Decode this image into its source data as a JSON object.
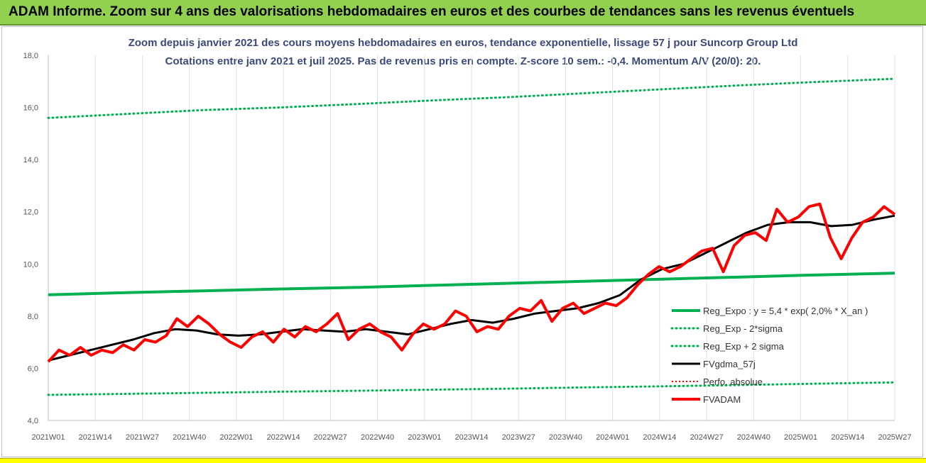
{
  "banner": {
    "title": "ADAM Informe. Zoom sur 4 ans des valorisations hebdomadaires en euros et des courbes de tendances sans les revenus éventuels"
  },
  "colors": {
    "banner_bg": "#92d050",
    "bottom_strip": "#ffff00",
    "title_text": "#3b4a7a",
    "reg_expo": "#00b050",
    "fvgdma": "#000000",
    "perfo": "#ff0000",
    "fvadam": "#ff0000"
  },
  "chart_data": {
    "type": "line",
    "title": "Zoom depuis janvier 2021 des cours moyens hebdomadaires en euros, tendance exponentielle, lissage 57 j pour Suncorp Group Ltd",
    "subtitle": "Cotations entre janv 2021 et juil 2025. Pas de revenus pris en compte. Z-score 10 sem.: -0,4. Momentum A/V (20/0): 20.",
    "xlabel": "",
    "ylabel": "",
    "ylim": [
      4.0,
      18.0
    ],
    "y_ticks": [
      "4,0",
      "6,0",
      "8,0",
      "10,0",
      "12,0",
      "14,0",
      "16,0",
      "18,0"
    ],
    "x_ticks": [
      "2021W01",
      "2021W14",
      "2021W27",
      "2021W40",
      "2022W01",
      "2022W14",
      "2022W27",
      "2022W40",
      "2023W01",
      "2023W14",
      "2023W27",
      "2023W40",
      "2024W01",
      "2024W14",
      "2024W27",
      "2024W40",
      "2025W01",
      "2025W14",
      "2025W27"
    ],
    "grid": "vertical",
    "legend_position": "right",
    "series": [
      {
        "name": "Reg_Expo : y = 5,4 * exp( 2,0% *  X_an )",
        "color": "#00b050",
        "style": "solid",
        "values": [
          8.82,
          8.9,
          8.97,
          9.04,
          9.1,
          9.18,
          9.26,
          9.34,
          9.42,
          9.5,
          9.58,
          9.65
        ]
      },
      {
        "name": "Reg_Exp - 2*sigma",
        "color": "#00b050",
        "style": "dotted",
        "values": [
          4.98,
          5.02,
          5.06,
          5.1,
          5.14,
          5.18,
          5.22,
          5.27,
          5.31,
          5.36,
          5.41,
          5.46
        ]
      },
      {
        "name": "Reg_Exp + 2 sigma",
        "color": "#00b050",
        "style": "dotted",
        "values": [
          15.6,
          15.75,
          15.9,
          16.0,
          16.13,
          16.27,
          16.4,
          16.55,
          16.7,
          16.85,
          16.98,
          17.1
        ]
      },
      {
        "name": "FVgdma_57j",
        "color": "#000000",
        "style": "solid",
        "values": [
          6.3,
          6.5,
          6.7,
          6.9,
          7.1,
          7.35,
          7.5,
          7.45,
          7.3,
          7.25,
          7.3,
          7.4,
          7.5,
          7.45,
          7.4,
          7.5,
          7.4,
          7.3,
          7.5,
          7.7,
          7.85,
          7.75,
          7.9,
          8.1,
          8.2,
          8.3,
          8.5,
          8.8,
          9.4,
          9.8,
          10.0,
          10.4,
          10.8,
          11.2,
          11.5,
          11.6,
          11.6,
          11.45,
          11.5,
          11.7,
          11.85
        ]
      },
      {
        "name": "Perfo. absolue",
        "color": "#ff0000",
        "style": "dotted",
        "values": []
      },
      {
        "name": "FVADAM",
        "color": "#ff0000",
        "style": "solid",
        "values": [
          6.25,
          6.7,
          6.5,
          6.8,
          6.5,
          6.7,
          6.6,
          6.9,
          6.7,
          7.1,
          7.0,
          7.25,
          7.9,
          7.6,
          8.0,
          7.7,
          7.3,
          7.0,
          6.8,
          7.2,
          7.4,
          7.0,
          7.5,
          7.2,
          7.6,
          7.4,
          7.7,
          8.1,
          7.1,
          7.5,
          7.7,
          7.4,
          7.2,
          6.7,
          7.3,
          7.7,
          7.5,
          7.7,
          8.2,
          8.0,
          7.4,
          7.6,
          7.5,
          8.0,
          8.3,
          8.2,
          8.6,
          7.8,
          8.3,
          8.5,
          8.1,
          8.3,
          8.5,
          8.4,
          8.7,
          9.2,
          9.6,
          9.9,
          9.7,
          9.9,
          10.2,
          10.5,
          10.6,
          9.7,
          10.7,
          11.1,
          11.2,
          10.9,
          12.1,
          11.6,
          11.8,
          12.2,
          12.3,
          11.0,
          10.2,
          11.0,
          11.6,
          11.8,
          12.2,
          11.9
        ]
      }
    ]
  }
}
